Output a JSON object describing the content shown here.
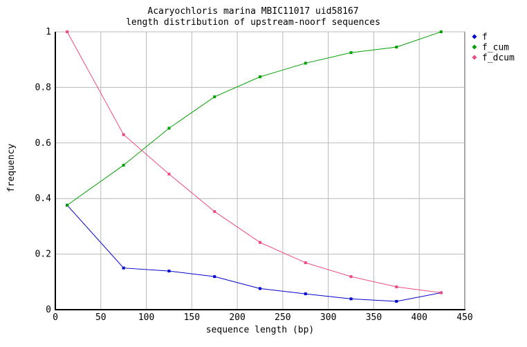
{
  "page": {
    "background": "#ffffff"
  },
  "chart_data": {
    "type": "line",
    "title": "Acaryochloris marina MBIC11017 uid58167",
    "subtitle": "length distribution of upstream-noorf sequences",
    "xlabel": "sequence length (bp)",
    "ylabel": "frequency",
    "xlim": [
      0,
      450
    ],
    "ylim": [
      0,
      1
    ],
    "x_ticks": [
      0,
      50,
      100,
      150,
      200,
      250,
      300,
      350,
      400,
      450
    ],
    "y_ticks": [
      0,
      0.2,
      0.4,
      0.6,
      0.8,
      1
    ],
    "grid": true,
    "legend_position": "top-right-outside",
    "x": [
      13,
      75,
      125,
      175,
      225,
      275,
      325,
      375,
      424
    ],
    "series": [
      {
        "name": "f",
        "color": "#0000cd",
        "values": [
          0.376,
          0.15,
          0.139,
          0.119,
          0.076,
          0.057,
          0.039,
          0.03,
          0.061
        ]
      },
      {
        "name": "f_cum",
        "color": "#00a000",
        "values": [
          0.376,
          0.52,
          0.653,
          0.766,
          0.838,
          0.887,
          0.925,
          0.945,
          1.0
        ]
      },
      {
        "name": "f_dcum",
        "color": "#ed4a7d",
        "values": [
          1.0,
          0.63,
          0.488,
          0.353,
          0.242,
          0.169,
          0.119,
          0.082,
          0.061
        ]
      }
    ],
    "colors": {
      "grid": "#b9b9b9",
      "axis": "#000000",
      "border": "#a8a8a8",
      "text": "#000000"
    }
  }
}
